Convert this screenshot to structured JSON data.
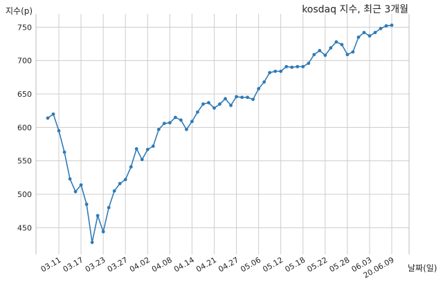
{
  "chart_data": {
    "type": "line",
    "title": "kosdaq 지수, 최근 3개월",
    "xlabel": "날짜(일)",
    "ylabel": "지수(p)",
    "x_tick_labels": [
      "03.11",
      "03.17",
      "03.23",
      "03.27",
      "04.02",
      "04.08",
      "04.14",
      "04.21",
      "04.27",
      "05.06",
      "05.12",
      "05.18",
      "05.22",
      "05.28",
      "06.03",
      "20.06.09"
    ],
    "y_ticks": [
      450,
      500,
      550,
      600,
      650,
      700,
      750
    ],
    "ylim": [
      410,
      770
    ],
    "grid": true,
    "color": "#2e7ab6",
    "series": [
      {
        "values": [
          614,
          620,
          595,
          563,
          523,
          504,
          514,
          485,
          428,
          468,
          444,
          480,
          505,
          516,
          522,
          541,
          568,
          552,
          567,
          572,
          597,
          606,
          607,
          615,
          611,
          597,
          609,
          623,
          635,
          637,
          629,
          635,
          643,
          633,
          646,
          645,
          645,
          642,
          658,
          668,
          682,
          684,
          684,
          691,
          690,
          691,
          691,
          696,
          709,
          715,
          708,
          719,
          728,
          724,
          709,
          713,
          735,
          742,
          737,
          742,
          748,
          752,
          753
        ]
      }
    ]
  }
}
